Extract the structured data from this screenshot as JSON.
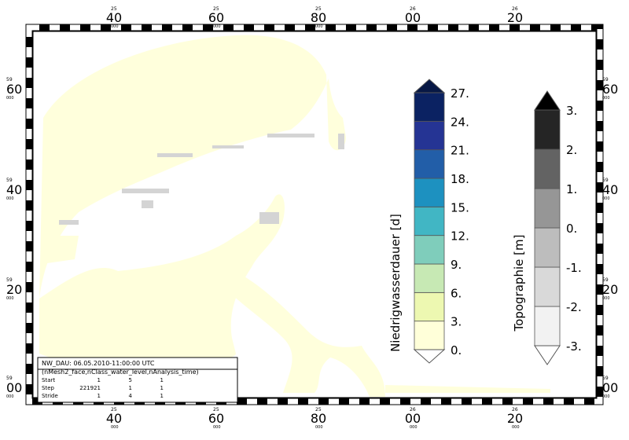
{
  "map": {
    "lon_labels": [
      {
        "deg": "25",
        "min": "40",
        "sec": "000"
      },
      {
        "deg": "25",
        "min": "60",
        "sec": "000"
      },
      {
        "deg": "25",
        "min": "80",
        "sec": "000"
      },
      {
        "deg": "26",
        "min": "00",
        "sec": "000"
      },
      {
        "deg": "26",
        "min": "20",
        "sec": "000"
      }
    ],
    "lat_labels": [
      {
        "deg": "59",
        "min": "60",
        "sec": "000"
      },
      {
        "deg": "59",
        "min": "40",
        "sec": "000"
      },
      {
        "deg": "59",
        "min": "20",
        "sec": "000"
      },
      {
        "deg": "59",
        "min": "00",
        "sec": "000"
      }
    ]
  },
  "colorbars": [
    {
      "label": "Niedrigwasserdauer [d]",
      "ticks": [
        "0.",
        "3.",
        "6.",
        "9.",
        "12.",
        "15.",
        "18.",
        "21.",
        "24.",
        "27."
      ],
      "colors": [
        "#ffffd9",
        "#edf8b1",
        "#c7e9b4",
        "#7fcdbb",
        "#41b6c4",
        "#1d91c0",
        "#225ea8",
        "#253494",
        "#0b2262"
      ],
      "over_color": "#071845",
      "under_color": "#ffffff"
    },
    {
      "label": "Topographie [m]",
      "ticks": [
        "-3.",
        "-2.",
        "-1.",
        "0.",
        "1.",
        "2.",
        "3."
      ],
      "colors": [
        "#f2f2f2",
        "#d9d9d9",
        "#bdbdbd",
        "#969696",
        "#636363",
        "#252525"
      ],
      "over_color": "#000000",
      "under_color": "#ffffff"
    }
  ],
  "info": {
    "title": "NW_DAU: 06.05.2010-11:00:00 UTC",
    "dims": "(nMesh2_face,nClass_water_level,nAnalysis_time)",
    "rows": [
      [
        "Start",
        "1",
        "5",
        "1"
      ],
      [
        "Step",
        "221921",
        "1",
        "1"
      ],
      [
        "Stride",
        "1",
        "4",
        "1"
      ]
    ]
  }
}
